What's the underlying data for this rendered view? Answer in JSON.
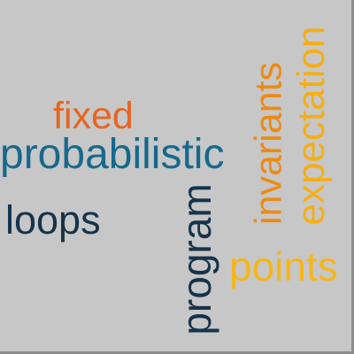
{
  "cloud": {
    "background": "#c7c7c7",
    "words": {
      "fixed": {
        "text": "fixed",
        "color": "#e8641f"
      },
      "probabilistic": {
        "text": "probabilistic",
        "color": "#17698c"
      },
      "loops": {
        "text": "loops",
        "color": "#15334a"
      },
      "program": {
        "text": "program",
        "color": "#15334a"
      },
      "invariants": {
        "text": "invariants",
        "color": "#ee8a12"
      },
      "expectation": {
        "text": "expectation",
        "color": "#f5ae16"
      },
      "points": {
        "text": "points",
        "color": "#f5b61a"
      }
    }
  }
}
